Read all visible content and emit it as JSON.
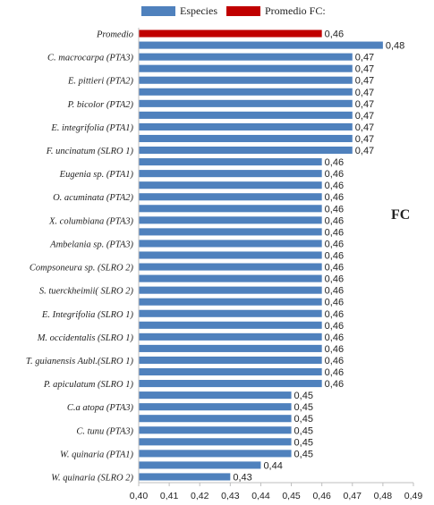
{
  "legend": {
    "species_label": "Especies",
    "average_label": "Promedio FC:"
  },
  "side_label": "FC",
  "colors": {
    "species": "#4f81bd",
    "average": "#c00000"
  },
  "chart_data": {
    "type": "bar",
    "orientation": "horizontal",
    "xlim": [
      0.4,
      0.49
    ],
    "xticks": [
      "0,40",
      "0,41",
      "0,42",
      "0,43",
      "0,44",
      "0,45",
      "0,46",
      "0,47",
      "0,48",
      "0,49"
    ],
    "grid": false,
    "legend_position": "top",
    "bars": [
      {
        "label": "Promedio",
        "value": 0.46,
        "text": "0,46",
        "series": "average"
      },
      {
        "label": "",
        "value": 0.48,
        "text": "0,48",
        "series": "species"
      },
      {
        "label": "C. macrocarpa  (PTA3)",
        "value": 0.47,
        "text": "0,47",
        "series": "species"
      },
      {
        "label": "",
        "value": 0.47,
        "text": "0,47",
        "series": "species"
      },
      {
        "label": "E. pittieri  (PTA2)",
        "value": 0.47,
        "text": "0,47",
        "series": "species"
      },
      {
        "label": "",
        "value": 0.47,
        "text": "0,47",
        "series": "species"
      },
      {
        "label": "P. bicolor (PTA2)",
        "value": 0.47,
        "text": "0,47",
        "series": "species"
      },
      {
        "label": "",
        "value": 0.47,
        "text": "0,47",
        "series": "species"
      },
      {
        "label": "E. integrifolia (PTA1)",
        "value": 0.47,
        "text": "0,47",
        "series": "species"
      },
      {
        "label": "",
        "value": 0.47,
        "text": "0,47",
        "series": "species"
      },
      {
        "label": "F. uncinatum (SLRO 1)",
        "value": 0.47,
        "text": "0,47",
        "series": "species"
      },
      {
        "label": "",
        "value": 0.46,
        "text": "0,46",
        "series": "species"
      },
      {
        "label": "Eugenia sp. (PTA1)",
        "value": 0.46,
        "text": "0,46",
        "series": "species"
      },
      {
        "label": "",
        "value": 0.46,
        "text": "0,46",
        "series": "species"
      },
      {
        "label": "O. acuminata  (PTA2)",
        "value": 0.46,
        "text": "0,46",
        "series": "species"
      },
      {
        "label": "",
        "value": 0.46,
        "text": "0,46",
        "series": "species"
      },
      {
        "label": "X. columbiana (PTA3)",
        "value": 0.46,
        "text": "0,46",
        "series": "species"
      },
      {
        "label": "",
        "value": 0.46,
        "text": "0,46",
        "series": "species"
      },
      {
        "label": "Ambelania sp. (PTA3)",
        "value": 0.46,
        "text": "0,46",
        "series": "species"
      },
      {
        "label": "",
        "value": 0.46,
        "text": "0,46",
        "series": "species"
      },
      {
        "label": "Compsoneura sp. (SLRO 2)",
        "value": 0.46,
        "text": "0,46",
        "series": "species"
      },
      {
        "label": "",
        "value": 0.46,
        "text": "0,46",
        "series": "species"
      },
      {
        "label": "S. tuerckheimii( SLRO 2)",
        "value": 0.46,
        "text": "0,46",
        "series": "species"
      },
      {
        "label": "",
        "value": 0.46,
        "text": "0,46",
        "series": "species"
      },
      {
        "label": "E. Integrifolia (SLRO 1)",
        "value": 0.46,
        "text": "0,46",
        "series": "species"
      },
      {
        "label": "",
        "value": 0.46,
        "text": "0,46",
        "series": "species"
      },
      {
        "label": "M. occidentalis (SLRO 1)",
        "value": 0.46,
        "text": "0,46",
        "series": "species"
      },
      {
        "label": "",
        "value": 0.46,
        "text": "0,46",
        "series": "species"
      },
      {
        "label": "T. guianensis Aubl.(SLRO 1)",
        "value": 0.46,
        "text": "0,46",
        "series": "species"
      },
      {
        "label": "",
        "value": 0.46,
        "text": "0,46",
        "series": "species"
      },
      {
        "label": "P. apiculatum (SLRO 1)",
        "value": 0.46,
        "text": "0,46",
        "series": "species"
      },
      {
        "label": "",
        "value": 0.45,
        "text": "0,45",
        "series": "species"
      },
      {
        "label": "C.a atopa (PTA3)",
        "value": 0.45,
        "text": "0,45",
        "series": "species"
      },
      {
        "label": "",
        "value": 0.45,
        "text": "0,45",
        "series": "species"
      },
      {
        "label": "C. tunu (PTA3)",
        "value": 0.45,
        "text": "0,45",
        "series": "species"
      },
      {
        "label": "",
        "value": 0.45,
        "text": "0,45",
        "series": "species"
      },
      {
        "label": "W. quinaria (PTA1)",
        "value": 0.45,
        "text": "0,45",
        "series": "species"
      },
      {
        "label": "",
        "value": 0.44,
        "text": "0,44",
        "series": "species"
      },
      {
        "label": "W.  quinaria (SLRO 2)",
        "value": 0.43,
        "text": "0,43",
        "series": "species"
      }
    ]
  }
}
